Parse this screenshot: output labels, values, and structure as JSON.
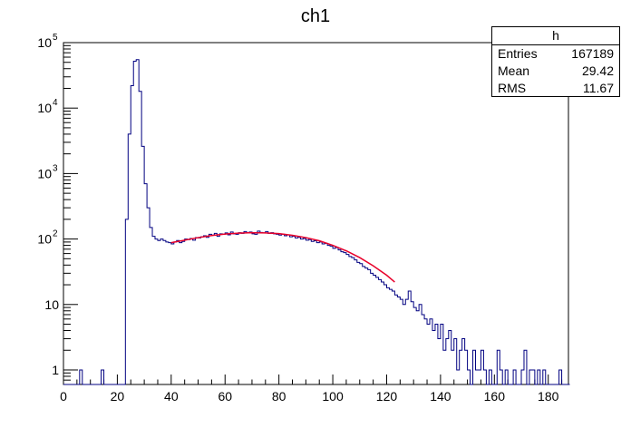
{
  "chart_data": {
    "type": "histogram",
    "title": "ch1",
    "xlabel": "",
    "ylabel": "",
    "xlim": [
      0,
      187.5
    ],
    "ylim": [
      0.6,
      100000
    ],
    "log_y": true,
    "x_ticks": [
      0,
      20,
      40,
      60,
      80,
      100,
      120,
      140,
      160,
      180
    ],
    "x_tick_labels": [
      "0",
      "20",
      "40",
      "60",
      "80",
      "100",
      "120",
      "140",
      "160",
      "180"
    ],
    "y_ticks": [
      1,
      10,
      100,
      1000,
      10000,
      100000
    ],
    "y_tick_bases": [
      "1",
      "10",
      "10",
      "10",
      "10",
      "10"
    ],
    "y_tick_exponents": [
      "",
      "",
      "2",
      "3",
      "4",
      "5"
    ],
    "grid": false,
    "bin_width": 1,
    "bin_start": 0,
    "counts": [
      0,
      0,
      0,
      0,
      0,
      0,
      1,
      0,
      0,
      0,
      0,
      0,
      0,
      0,
      1,
      0,
      0,
      0,
      0,
      0,
      0,
      0,
      0,
      200,
      4000,
      22000,
      52000,
      55000,
      18000,
      2600,
      700,
      300,
      150,
      110,
      100,
      95,
      100,
      95,
      90,
      88,
      84,
      90,
      95,
      88,
      92,
      100,
      98,
      102,
      96,
      105,
      104,
      108,
      112,
      106,
      118,
      115,
      122,
      110,
      120,
      118,
      124,
      116,
      128,
      120,
      118,
      125,
      122,
      130,
      124,
      128,
      120,
      118,
      132,
      126,
      124,
      130,
      122,
      125,
      120,
      118,
      115,
      118,
      112,
      116,
      108,
      110,
      104,
      106,
      100,
      102,
      96,
      98,
      92,
      94,
      88,
      90,
      84,
      86,
      80,
      78,
      72,
      74,
      68,
      64,
      62,
      58,
      54,
      52,
      48,
      44,
      42,
      38,
      36,
      34,
      30,
      28,
      26,
      24,
      22,
      20,
      18,
      17,
      16,
      14,
      13,
      12,
      10,
      12,
      16,
      11,
      9,
      8,
      10,
      7,
      6,
      5,
      6,
      4,
      5,
      3,
      5,
      2,
      3,
      4,
      2,
      3,
      1,
      2,
      3,
      2,
      1,
      0,
      2,
      1,
      1,
      2,
      1,
      0,
      1,
      0,
      0,
      2,
      1,
      0,
      1,
      0,
      0,
      1,
      0,
      0,
      1,
      2,
      0,
      1,
      1,
      0,
      1,
      0,
      1,
      0,
      0,
      0,
      0,
      0,
      1,
      0,
      0,
      0
    ],
    "fit": {
      "color": "#e8002a",
      "x_range": [
        40,
        123
      ],
      "x": [
        40,
        45,
        50,
        55,
        60,
        65,
        70,
        75,
        80,
        85,
        90,
        95,
        100,
        105,
        110,
        115,
        120,
        123
      ],
      "y": [
        88,
        96,
        105,
        113,
        119,
        123,
        125,
        124,
        121,
        114,
        105,
        94,
        80,
        66,
        52,
        39,
        28,
        22
      ]
    },
    "line_color": "#000080",
    "stats_box": {
      "name": "h",
      "entries_label": "Entries",
      "entries": "167189",
      "mean_label": "Mean",
      "mean": "29.42",
      "rms_label": "RMS",
      "rms": "11.67"
    }
  }
}
